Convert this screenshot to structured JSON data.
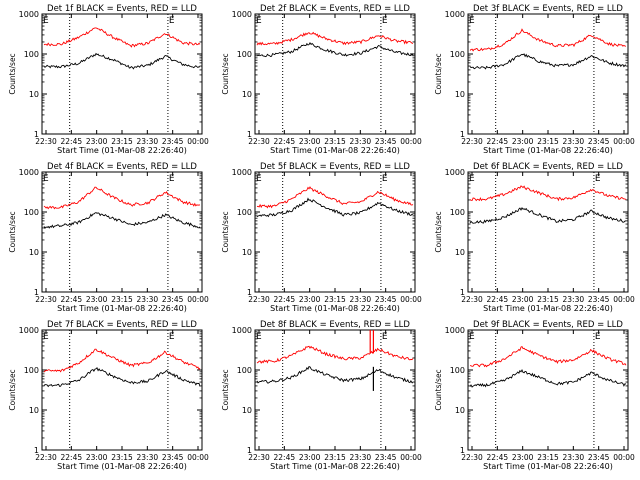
{
  "chart_data": [
    {
      "type": "line",
      "title": "Det 1f BLACK = Events, RED = LLD",
      "xlabel": "Start Time (01-Mar-08 22:26:40)",
      "ylabel": "Counts/sec",
      "yscale": "log",
      "ylim": [
        1,
        1000
      ],
      "xticks": [
        "22:30",
        "22:45",
        "23:00",
        "23:15",
        "23:30",
        "23:45",
        "00:00"
      ],
      "yticks": [
        "1",
        "10",
        "100",
        "1000"
      ],
      "markers": [
        "E",
        "E"
      ],
      "bursts": [],
      "series": [
        {
          "color": "#000000",
          "values": [
            48,
            48,
            58,
            100,
            72,
            45,
            52,
            88,
            55,
            45
          ]
        },
        {
          "color": "#ff0000",
          "values": [
            175,
            175,
            260,
            460,
            260,
            160,
            185,
            330,
            190,
            170
          ]
        }
      ]
    },
    {
      "type": "line",
      "title": "Det 2f BLACK = Events, RED = LLD",
      "xlabel": "Start Time (01-Mar-08 22:26:40)",
      "ylabel": "Counts/sec",
      "yscale": "log",
      "ylim": [
        1,
        1000
      ],
      "xticks": [
        "22:30",
        "22:45",
        "23:00",
        "23:15",
        "23:30",
        "23:45",
        "00:00"
      ],
      "yticks": [
        "1",
        "10",
        "100",
        "1000"
      ],
      "markers": [
        "E",
        "E"
      ],
      "bursts": [],
      "series": [
        {
          "color": "#000000",
          "values": [
            90,
            95,
            115,
            185,
            125,
            95,
            105,
            155,
            110,
            95
          ]
        },
        {
          "color": "#ff0000",
          "values": [
            180,
            180,
            230,
            350,
            240,
            185,
            200,
            290,
            210,
            190
          ]
        }
      ]
    },
    {
      "type": "line",
      "title": "Det 3f BLACK = Events, RED = LLD",
      "xlabel": "Start Time (01-Mar-08 22:26:40)",
      "ylabel": "Counts/sec",
      "yscale": "log",
      "ylim": [
        1,
        1000
      ],
      "xticks": [
        "22:30",
        "22:45",
        "23:00",
        "23:15",
        "23:30",
        "23:45",
        "00:00"
      ],
      "yticks": [
        "1",
        "10",
        "100",
        "1000"
      ],
      "markers": [
        "E",
        "E"
      ],
      "bursts": [],
      "series": [
        {
          "color": "#000000",
          "values": [
            45,
            45,
            55,
            100,
            65,
            50,
            55,
            90,
            60,
            50
          ]
        },
        {
          "color": "#ff0000",
          "values": [
            130,
            130,
            180,
            390,
            220,
            160,
            170,
            300,
            180,
            150
          ]
        }
      ]
    },
    {
      "type": "line",
      "title": "Det 4f BLACK = Events, RED = LLD",
      "xlabel": "Start Time (01-Mar-08 22:26:40)",
      "ylabel": "Counts/sec",
      "yscale": "log",
      "ylim": [
        1,
        1000
      ],
      "xticks": [
        "22:30",
        "22:45",
        "23:00",
        "23:15",
        "23:30",
        "23:45",
        "00:00"
      ],
      "yticks": [
        "1",
        "10",
        "100",
        "1000"
      ],
      "markers": [
        "E",
        "E"
      ],
      "bursts": [],
      "series": [
        {
          "color": "#000000",
          "values": [
            42,
            45,
            55,
            95,
            70,
            48,
            55,
            85,
            55,
            42
          ]
        },
        {
          "color": "#ff0000",
          "values": [
            130,
            130,
            180,
            410,
            230,
            150,
            170,
            310,
            180,
            140
          ]
        }
      ]
    },
    {
      "type": "line",
      "title": "Det 5f BLACK = Events, RED = LLD",
      "xlabel": "Start Time (01-Mar-08 22:26:40)",
      "ylabel": "Counts/sec",
      "yscale": "log",
      "ylim": [
        1,
        1000
      ],
      "xticks": [
        "22:30",
        "22:45",
        "23:00",
        "23:15",
        "23:30",
        "23:45",
        "00:00"
      ],
      "yticks": [
        "1",
        "10",
        "100",
        "1000"
      ],
      "markers": [
        "E",
        "E"
      ],
      "bursts": [],
      "series": [
        {
          "color": "#000000",
          "values": [
            80,
            85,
            110,
            210,
            130,
            85,
            95,
            170,
            110,
            85
          ]
        },
        {
          "color": "#ff0000",
          "values": [
            140,
            140,
            210,
            400,
            250,
            160,
            180,
            320,
            200,
            150
          ]
        }
      ]
    },
    {
      "type": "line",
      "title": "Det 6f BLACK = Events, RED = LLD",
      "xlabel": "Start Time (01-Mar-08 22:26:40)",
      "ylabel": "Counts/sec",
      "yscale": "log",
      "ylim": [
        1,
        1000
      ],
      "xticks": [
        "22:30",
        "22:45",
        "23:00",
        "23:15",
        "23:30",
        "23:45",
        "00:00"
      ],
      "yticks": [
        "1",
        "10",
        "100",
        "1000"
      ],
      "markers": [
        "E",
        "E"
      ],
      "bursts": [],
      "series": [
        {
          "color": "#000000",
          "values": [
            55,
            58,
            75,
            125,
            85,
            58,
            65,
            105,
            70,
            58
          ]
        },
        {
          "color": "#ff0000",
          "values": [
            210,
            210,
            280,
            430,
            300,
            210,
            230,
            370,
            250,
            210
          ]
        }
      ]
    },
    {
      "type": "line",
      "title": "Det 7f BLACK = Events, RED = LLD",
      "xlabel": "Start Time (01-Mar-08 22:26:40)",
      "ylabel": "Counts/sec",
      "yscale": "log",
      "ylim": [
        1,
        1000
      ],
      "xticks": [
        "22:30",
        "22:45",
        "23:00",
        "23:15",
        "23:30",
        "23:45",
        "00:00"
      ],
      "yticks": [
        "1",
        "10",
        "100",
        "1000"
      ],
      "markers": [
        "E",
        "E"
      ],
      "bursts": [],
      "series": [
        {
          "color": "#000000",
          "values": [
            40,
            42,
            55,
            110,
            70,
            48,
            52,
            95,
            58,
            42
          ]
        },
        {
          "color": "#ff0000",
          "values": [
            95,
            95,
            150,
            330,
            200,
            130,
            150,
            280,
            160,
            110
          ]
        }
      ]
    },
    {
      "type": "line",
      "title": "Det 8f BLACK = Events, RED = LLD",
      "xlabel": "Start Time (01-Mar-08 22:26:40)",
      "ylabel": "Counts/sec",
      "yscale": "log",
      "ylim": [
        1,
        1000
      ],
      "xticks": [
        "22:30",
        "22:45",
        "23:00",
        "23:15",
        "23:30",
        "23:45",
        "00:00"
      ],
      "yticks": [
        "1",
        "10",
        "100",
        "1000"
      ],
      "markers": [
        "E",
        "E"
      ],
      "bursts": [
        {
          "color": "#ff0000",
          "x": 0.72,
          "from": 260,
          "to": 1000
        },
        {
          "color": "#ff0000",
          "x": 0.74,
          "from": 260,
          "to": 1000
        },
        {
          "color": "#000000",
          "x": 0.74,
          "from": 30,
          "to": 120
        }
      ],
      "series": [
        {
          "color": "#000000",
          "values": [
            50,
            52,
            65,
            115,
            75,
            55,
            60,
            100,
            65,
            50
          ]
        },
        {
          "color": "#ff0000",
          "values": [
            160,
            165,
            230,
            390,
            250,
            190,
            200,
            330,
            220,
            180
          ]
        }
      ]
    },
    {
      "type": "line",
      "title": "Det 9f BLACK = Events, RED = LLD",
      "xlabel": "Start Time (01-Mar-08 22:26:40)",
      "ylabel": "Counts/sec",
      "yscale": "log",
      "ylim": [
        1,
        1000
      ],
      "xticks": [
        "22:30",
        "22:45",
        "23:00",
        "23:15",
        "23:30",
        "23:45",
        "00:00"
      ],
      "yticks": [
        "1",
        "10",
        "100",
        "1000"
      ],
      "markers": [
        "E",
        "E"
      ],
      "bursts": [],
      "series": [
        {
          "color": "#000000",
          "values": [
            40,
            42,
            55,
            95,
            65,
            45,
            50,
            85,
            55,
            42
          ]
        },
        {
          "color": "#ff0000",
          "values": [
            130,
            130,
            190,
            360,
            230,
            160,
            180,
            310,
            190,
            140
          ]
        }
      ]
    }
  ]
}
